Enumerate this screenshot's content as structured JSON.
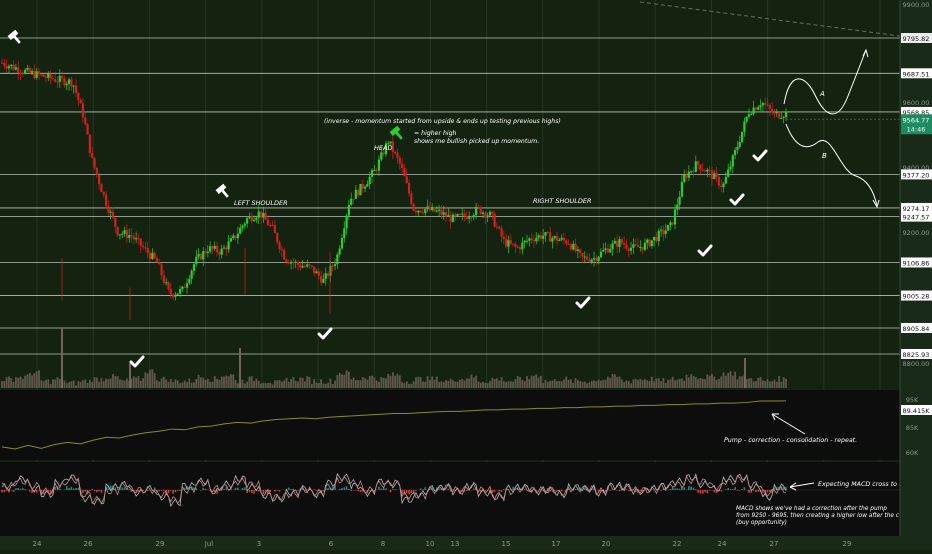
{
  "chart_data": [
    {
      "type": "candlestick",
      "title": "",
      "ylim": [
        8785,
        9905
      ],
      "y_scale_labels": [
        "9900.00",
        "9600.00",
        "9400.00",
        "9200.00",
        "9000.00",
        "8800.00"
      ],
      "x_tick_labels": [
        "24",
        "26",
        "29",
        "Jul",
        "3",
        "6",
        "8",
        "10",
        "13",
        "15",
        "17",
        "20",
        "22",
        "24",
        "27",
        "29"
      ],
      "grid": true,
      "levels": [
        {
          "label": "9795.82",
          "value": 9795.82,
          "highlight": true
        },
        {
          "label": "9687.51",
          "value": 9687.51
        },
        {
          "label": "9568.85",
          "value": 9568.85
        },
        {
          "label": "9377.20",
          "value": 9377.2
        },
        {
          "label": "9274.17",
          "value": 9274.17
        },
        {
          "label": "9247.57",
          "value": 9247.57
        },
        {
          "label": "9106.86",
          "value": 9106.86
        },
        {
          "label": "9005.28",
          "value": 9005.28
        },
        {
          "label": "8905.84",
          "value": 8905.84
        },
        {
          "label": "8825.93",
          "value": 8825.93
        }
      ],
      "last_price": {
        "label": "9564.77",
        "timer": "14:46",
        "value": 9564.77
      },
      "price_path": [
        {
          "t": 0,
          "v": 9720
        },
        {
          "t": 2,
          "v": 9690
        },
        {
          "t": 4,
          "v": 9670
        },
        {
          "t": 5.5,
          "v": 9660
        },
        {
          "t": 6.3,
          "v": 9560
        },
        {
          "t": 7,
          "v": 9420
        },
        {
          "t": 8,
          "v": 9300
        },
        {
          "t": 9,
          "v": 9200
        },
        {
          "t": 10,
          "v": 9190
        },
        {
          "t": 11,
          "v": 9150
        },
        {
          "t": 12,
          "v": 9110
        },
        {
          "t": 13,
          "v": 9010
        },
        {
          "t": 14,
          "v": 9020
        },
        {
          "t": 15,
          "v": 9110
        },
        {
          "t": 16,
          "v": 9150
        },
        {
          "t": 17,
          "v": 9140
        },
        {
          "t": 18,
          "v": 9180
        },
        {
          "t": 19,
          "v": 9240
        },
        {
          "t": 20,
          "v": 9260
        },
        {
          "t": 21,
          "v": 9210
        },
        {
          "t": 22,
          "v": 9120
        },
        {
          "t": 23,
          "v": 9100
        },
        {
          "t": 24,
          "v": 9090
        },
        {
          "t": 25,
          "v": 9050
        },
        {
          "t": 26,
          "v": 9120
        },
        {
          "t": 27,
          "v": 9300
        },
        {
          "t": 28,
          "v": 9340
        },
        {
          "t": 29,
          "v": 9390
        },
        {
          "t": 30,
          "v": 9480
        },
        {
          "t": 31,
          "v": 9400
        },
        {
          "t": 32,
          "v": 9270
        },
        {
          "t": 33,
          "v": 9270
        },
        {
          "t": 34,
          "v": 9260
        },
        {
          "t": 35,
          "v": 9240
        },
        {
          "t": 36,
          "v": 9250
        },
        {
          "t": 37,
          "v": 9270
        },
        {
          "t": 38,
          "v": 9250
        },
        {
          "t": 39,
          "v": 9170
        },
        {
          "t": 40,
          "v": 9150
        },
        {
          "t": 41,
          "v": 9180
        },
        {
          "t": 42,
          "v": 9190
        },
        {
          "t": 43,
          "v": 9180
        },
        {
          "t": 44,
          "v": 9170
        },
        {
          "t": 45,
          "v": 9120
        },
        {
          "t": 46,
          "v": 9120
        },
        {
          "t": 47,
          "v": 9150
        },
        {
          "t": 48,
          "v": 9170
        },
        {
          "t": 49,
          "v": 9150
        },
        {
          "t": 50,
          "v": 9160
        },
        {
          "t": 51,
          "v": 9190
        },
        {
          "t": 52,
          "v": 9220
        },
        {
          "t": 53,
          "v": 9370
        },
        {
          "t": 54,
          "v": 9410
        },
        {
          "t": 55,
          "v": 9380
        },
        {
          "t": 56,
          "v": 9340
        },
        {
          "t": 57,
          "v": 9450
        },
        {
          "t": 58,
          "v": 9570
        },
        {
          "t": 59,
          "v": 9600
        },
        {
          "t": 60,
          "v": 9560
        },
        {
          "t": 60.9,
          "v": 9564.77
        }
      ],
      "volume": [
        3,
        4,
        6,
        2,
        3,
        1,
        2,
        3,
        4,
        2,
        3,
        7,
        3,
        2,
        2,
        4,
        3,
        5,
        2,
        3,
        2,
        1,
        3,
        3,
        2,
        2,
        6,
        3,
        4,
        3,
        5,
        2,
        3,
        3,
        2,
        3,
        4,
        2,
        3,
        2,
        3,
        5,
        2,
        3,
        2,
        2,
        3,
        4,
        2,
        3,
        3,
        2,
        3,
        5,
        4,
        4,
        6,
        4,
        3,
        2,
        3
      ],
      "annotations": {
        "left_shoulder": "LEFT SHOULDER",
        "head": "HEAD",
        "right_shoulder": "RIGHT SHOULDER",
        "inverse_note": "(inverse - momentum started from upside & ends up testing previous highs)",
        "higher_high_1": "= higher high",
        "higher_high_2": "shows me bullish picked up momentum.",
        "path_a": "A",
        "path_b": "B"
      },
      "checkmark_count": 9
    },
    {
      "type": "line",
      "title": "",
      "y_scale_labels": [
        "95K",
        "90K",
        "85K",
        "80K",
        "60K"
      ],
      "last_value_label": "89.415K",
      "values": [
        83.2,
        82.9,
        83.4,
        83.0,
        83.5,
        83.8,
        83.6,
        84.1,
        84.5,
        84.4,
        84.8,
        85.1,
        85.3,
        85.6,
        85.5,
        85.9,
        86.0,
        86.3,
        86.5,
        86.4,
        86.7,
        86.9,
        87.0,
        87.1,
        87.0,
        87.2,
        87.3,
        87.4,
        87.5,
        87.6,
        87.7,
        87.7,
        87.8,
        87.9,
        88.0,
        88.0,
        88.1,
        88.2,
        88.2,
        88.3,
        88.3,
        88.4,
        88.4,
        88.5,
        88.5,
        88.6,
        88.6,
        88.7,
        88.7,
        88.8,
        88.8,
        88.9,
        88.9,
        89.0,
        89.0,
        89.1,
        89.1,
        89.2,
        89.4,
        89.4,
        89.41
      ],
      "annotation": "Pump - correction - consolidation - repeat."
    },
    {
      "type": "line",
      "title": "",
      "indicator": "MACD",
      "series": [
        {
          "name": "",
          "values": [
            0.2,
            0.8,
            0.1,
            -0.3,
            0.5,
            0.9,
            -0.6,
            -0.8,
            0.2,
            0.4,
            -0.2,
            0.1,
            -0.5,
            -0.9,
            0.3,
            0.6,
            -0.1,
            0.4,
            0.8,
            0.2,
            -0.4,
            -0.6,
            -0.2,
            0.1,
            -0.3,
            0.5,
            0.9,
            0.3,
            -0.2,
            0.6,
            0.4,
            -0.7,
            -0.3,
            0.1,
            0.2,
            -0.1,
            0.3,
            -0.2,
            -0.5,
            0.1,
            0.2,
            -0.1,
            0.0,
            -0.3,
            0.2,
            0.1,
            -0.2,
            0.3,
            0.2,
            -0.1,
            0.1,
            0.3,
            0.6,
            0.9,
            0.4,
            0.1,
            0.8,
            0.9,
            0.2,
            -0.5,
            0.2
          ]
        },
        {
          "name": "",
          "values": [
            0.3,
            0.6,
            0.3,
            -0.1,
            0.3,
            0.7,
            -0.3,
            -0.7,
            -0.1,
            0.3,
            0.0,
            0.0,
            -0.3,
            -0.7,
            0.0,
            0.5,
            0.1,
            0.2,
            0.6,
            0.4,
            -0.2,
            -0.5,
            -0.3,
            0.0,
            -0.2,
            0.2,
            0.7,
            0.5,
            0.0,
            0.4,
            0.5,
            -0.4,
            -0.4,
            0.0,
            0.2,
            0.0,
            0.2,
            0.0,
            -0.4,
            -0.1,
            0.1,
            0.0,
            0.0,
            -0.2,
            0.1,
            0.1,
            -0.1,
            0.2,
            0.2,
            0.0,
            0.0,
            0.2,
            0.4,
            0.7,
            0.6,
            0.2,
            0.6,
            0.8,
            0.4,
            -0.2,
            0.0
          ]
        }
      ],
      "annotation_1": "Expecting MACD cross to up",
      "annotation_2": [
        "MACD shows we've had a correction after the pump",
        "from 9250 - 9695, then creating a higher low after the c",
        "(buy opportunity)"
      ]
    }
  ],
  "colors": {
    "background": "#14230f",
    "panel_bg": "#0d0d0d",
    "grid": "#243522",
    "level_line": "#d8ddd2",
    "candle_up": "#2ecc2e",
    "candle_down": "#d41f1f",
    "volume": "#7a6a66",
    "indicator_line": "#8a8a2e",
    "macd": "#b8b8b8",
    "signal": "#c08a8a",
    "hist_pos": "#26a69a",
    "hist_neg": "#ef5350",
    "price_tag": "#1b8b62",
    "text": "#ffffff"
  }
}
